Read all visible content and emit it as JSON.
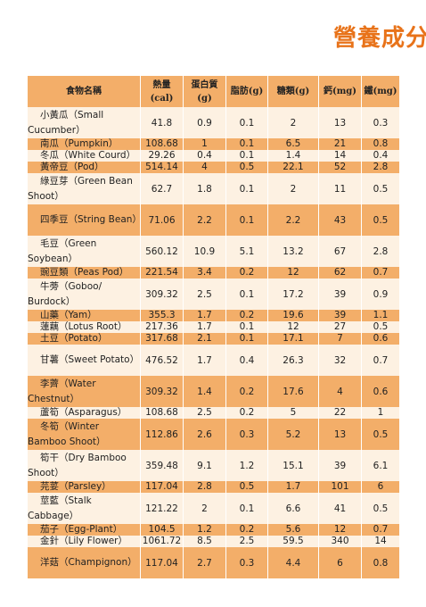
{
  "header": {
    "title": "營養成分"
  },
  "table": {
    "headers": [
      [
        "食物名稱"
      ],
      [
        "熱量",
        "(cal)"
      ],
      [
        "蛋白質",
        "(g)"
      ],
      [
        "脂肪(g)"
      ],
      [
        "糖類(g)"
      ],
      [
        "鈣(mg)"
      ],
      [
        "鐵(mg)"
      ]
    ],
    "rows": [
      [
        "小黃瓜（Small Cucumber）",
        41.8,
        0.9,
        0.1,
        2,
        13,
        0.3
      ],
      [
        "南瓜（Pumpkin）",
        108.68,
        1,
        0.1,
        6.5,
        21,
        0.8
      ],
      [
        "冬瓜（White Courd）",
        29.26,
        0.4,
        0.1,
        1.4,
        14,
        0.4
      ],
      [
        "黃帝豆（Pod）",
        514.14,
        4,
        0.5,
        22.1,
        52,
        2.8
      ],
      [
        "綠豆芽（Green Bean Shoot）",
        62.7,
        1.8,
        0.1,
        2,
        11,
        0.5
      ],
      [
        "四季豆（String Bean）",
        71.06,
        2.2,
        0.1,
        2.2,
        43,
        0.5
      ],
      [
        "毛豆（Green Soybean）",
        560.12,
        10.9,
        5.1,
        13.2,
        67,
        2.8
      ],
      [
        "豌豆類（Peas Pod）",
        221.54,
        3.4,
        0.2,
        12,
        62,
        0.7
      ],
      [
        "牛蒡（Goboo/ Burdock）",
        309.32,
        2.5,
        0.1,
        17.2,
        39,
        0.9
      ],
      [
        "山藥（Yam）",
        355.3,
        1.7,
        0.2,
        19.6,
        39,
        1.1
      ],
      [
        "蓮藕（Lotus Root）",
        217.36,
        1.7,
        0.1,
        12,
        27,
        0.5
      ],
      [
        "土豆（Potato）",
        317.68,
        2.1,
        0.1,
        17.1,
        7,
        0.6
      ],
      [
        "甘薯（Sweet Potato）",
        476.52,
        1.7,
        0.4,
        26.3,
        32,
        0.7
      ],
      [
        "李薺（Water Chestnut）",
        309.32,
        1.4,
        0.2,
        17.6,
        4,
        0.6
      ],
      [
        "蘆筍（Asparagus）",
        108.68,
        2.5,
        0.2,
        5,
        22,
        1
      ],
      [
        "冬筍（Winter Bamboo Shoot）",
        112.86,
        2.6,
        0.3,
        5.2,
        13,
        0.5
      ],
      [
        "筍干（Dry Bamboo Shoot）",
        359.48,
        9.1,
        1.2,
        15.1,
        39,
        6.1
      ],
      [
        "芫荽（Parsley）",
        117.04,
        2.8,
        0.5,
        1.7,
        101,
        6
      ],
      [
        "莖藍（Stalk Cabbage）",
        121.22,
        2,
        0.1,
        6.6,
        41,
        0.5
      ],
      [
        "茄子（Egg-Plant）",
        104.5,
        1.2,
        0.2,
        5.6,
        12,
        0.7
      ],
      [
        "金針（Lily Flower）",
        1061.72,
        8.5,
        2.5,
        59.5,
        340,
        14
      ],
      [
        "洋菇（Champignon）",
        117.04,
        2.7,
        0.3,
        4.4,
        6,
        0.8
      ]
    ]
  }
}
